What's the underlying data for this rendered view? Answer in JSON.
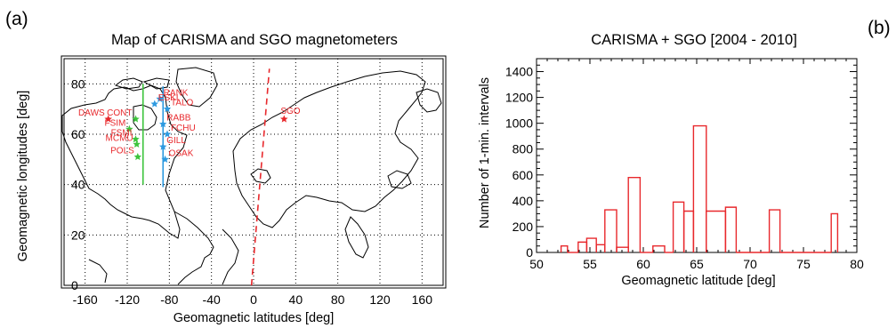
{
  "panel_labels": {
    "left": "(a)",
    "right": "(b)"
  },
  "colors": {
    "red": "#e8282c",
    "green": "#3cc43c",
    "blue": "#2d9ae0",
    "black": "#000000"
  },
  "chart_data": [
    {
      "type": "map",
      "title": "Map of CARISMA and SGO magnetometers",
      "xlabel": "Geomagnetic latitudes [deg]",
      "ylabel": "Geomagnetic longitudes [deg]",
      "xlim": [
        -180,
        180
      ],
      "ylim": [
        0,
        90
      ],
      "xticks": [
        -160,
        -120,
        -80,
        -40,
        0,
        40,
        80,
        120,
        160
      ],
      "yticks": [
        0,
        20,
        40,
        60,
        80
      ],
      "grid": true,
      "stations": [
        {
          "name": "DAWS",
          "x": -138,
          "y": 66
        },
        {
          "name": "CONT",
          "x": -112,
          "y": 66
        },
        {
          "name": "FSIM",
          "x": -118,
          "y": 62
        },
        {
          "name": "FSMI",
          "x": -112,
          "y": 58
        },
        {
          "name": "MCMU",
          "x": -111,
          "y": 56
        },
        {
          "name": "POLS",
          "x": -110,
          "y": 51
        },
        {
          "name": "SGO",
          "x": 29,
          "y": 66
        },
        {
          "name": "RANK",
          "x": -89,
          "y": 74
        },
        {
          "name": "ESKI",
          "x": -94,
          "y": 72
        },
        {
          "name": "TALO",
          "x": -82,
          "y": 70
        },
        {
          "name": "RABB",
          "x": -86,
          "y": 64
        },
        {
          "name": "FCHU",
          "x": -82,
          "y": 60
        },
        {
          "name": "GILL",
          "x": -86,
          "y": 55
        },
        {
          "name": "OSAK",
          "x": -84,
          "y": 50
        }
      ],
      "meridians": [
        {
          "name": "green",
          "x": -105,
          "y": [
            40,
            80
          ]
        },
        {
          "name": "blue",
          "x": -86,
          "y": [
            39,
            79
          ]
        },
        {
          "name": "red-dashed",
          "x": [
            -2,
            15
          ],
          "y": [
            0,
            86
          ]
        }
      ]
    },
    {
      "type": "step",
      "title": "CARISMA + SGO [2004 - 2010]",
      "xlabel": "Geomagnetic latitude [deg]",
      "ylabel": "Number of 1-min. intervals",
      "xlim": [
        50,
        80
      ],
      "ylim": [
        0,
        1500
      ],
      "xticks": [
        50,
        55,
        60,
        65,
        70,
        75,
        80
      ],
      "yticks": [
        0,
        200,
        400,
        600,
        800,
        1000,
        1200,
        1400
      ],
      "bins": [
        {
          "x0": 52.3,
          "x1": 52.9,
          "y": 50
        },
        {
          "x0": 52.9,
          "x1": 53.9,
          "y": 0
        },
        {
          "x0": 53.9,
          "x1": 54.7,
          "y": 80
        },
        {
          "x0": 54.7,
          "x1": 55.6,
          "y": 110
        },
        {
          "x0": 55.6,
          "x1": 56.4,
          "y": 60
        },
        {
          "x0": 56.4,
          "x1": 57.5,
          "y": 330
        },
        {
          "x0": 57.5,
          "x1": 58.6,
          "y": 40
        },
        {
          "x0": 58.6,
          "x1": 59.7,
          "y": 580
        },
        {
          "x0": 59.7,
          "x1": 60.9,
          "y": 0
        },
        {
          "x0": 60.9,
          "x1": 62.0,
          "y": 50
        },
        {
          "x0": 62.0,
          "x1": 62.8,
          "y": 0
        },
        {
          "x0": 62.8,
          "x1": 63.8,
          "y": 390
        },
        {
          "x0": 63.8,
          "x1": 64.7,
          "y": 320
        },
        {
          "x0": 64.7,
          "x1": 65.9,
          "y": 980
        },
        {
          "x0": 65.9,
          "x1": 67.7,
          "y": 320
        },
        {
          "x0": 67.7,
          "x1": 68.7,
          "y": 350
        },
        {
          "x0": 68.7,
          "x1": 71.8,
          "y": 0
        },
        {
          "x0": 71.8,
          "x1": 72.8,
          "y": 330
        },
        {
          "x0": 72.8,
          "x1": 77.6,
          "y": 0
        },
        {
          "x0": 77.6,
          "x1": 78.2,
          "y": 300
        }
      ]
    }
  ]
}
